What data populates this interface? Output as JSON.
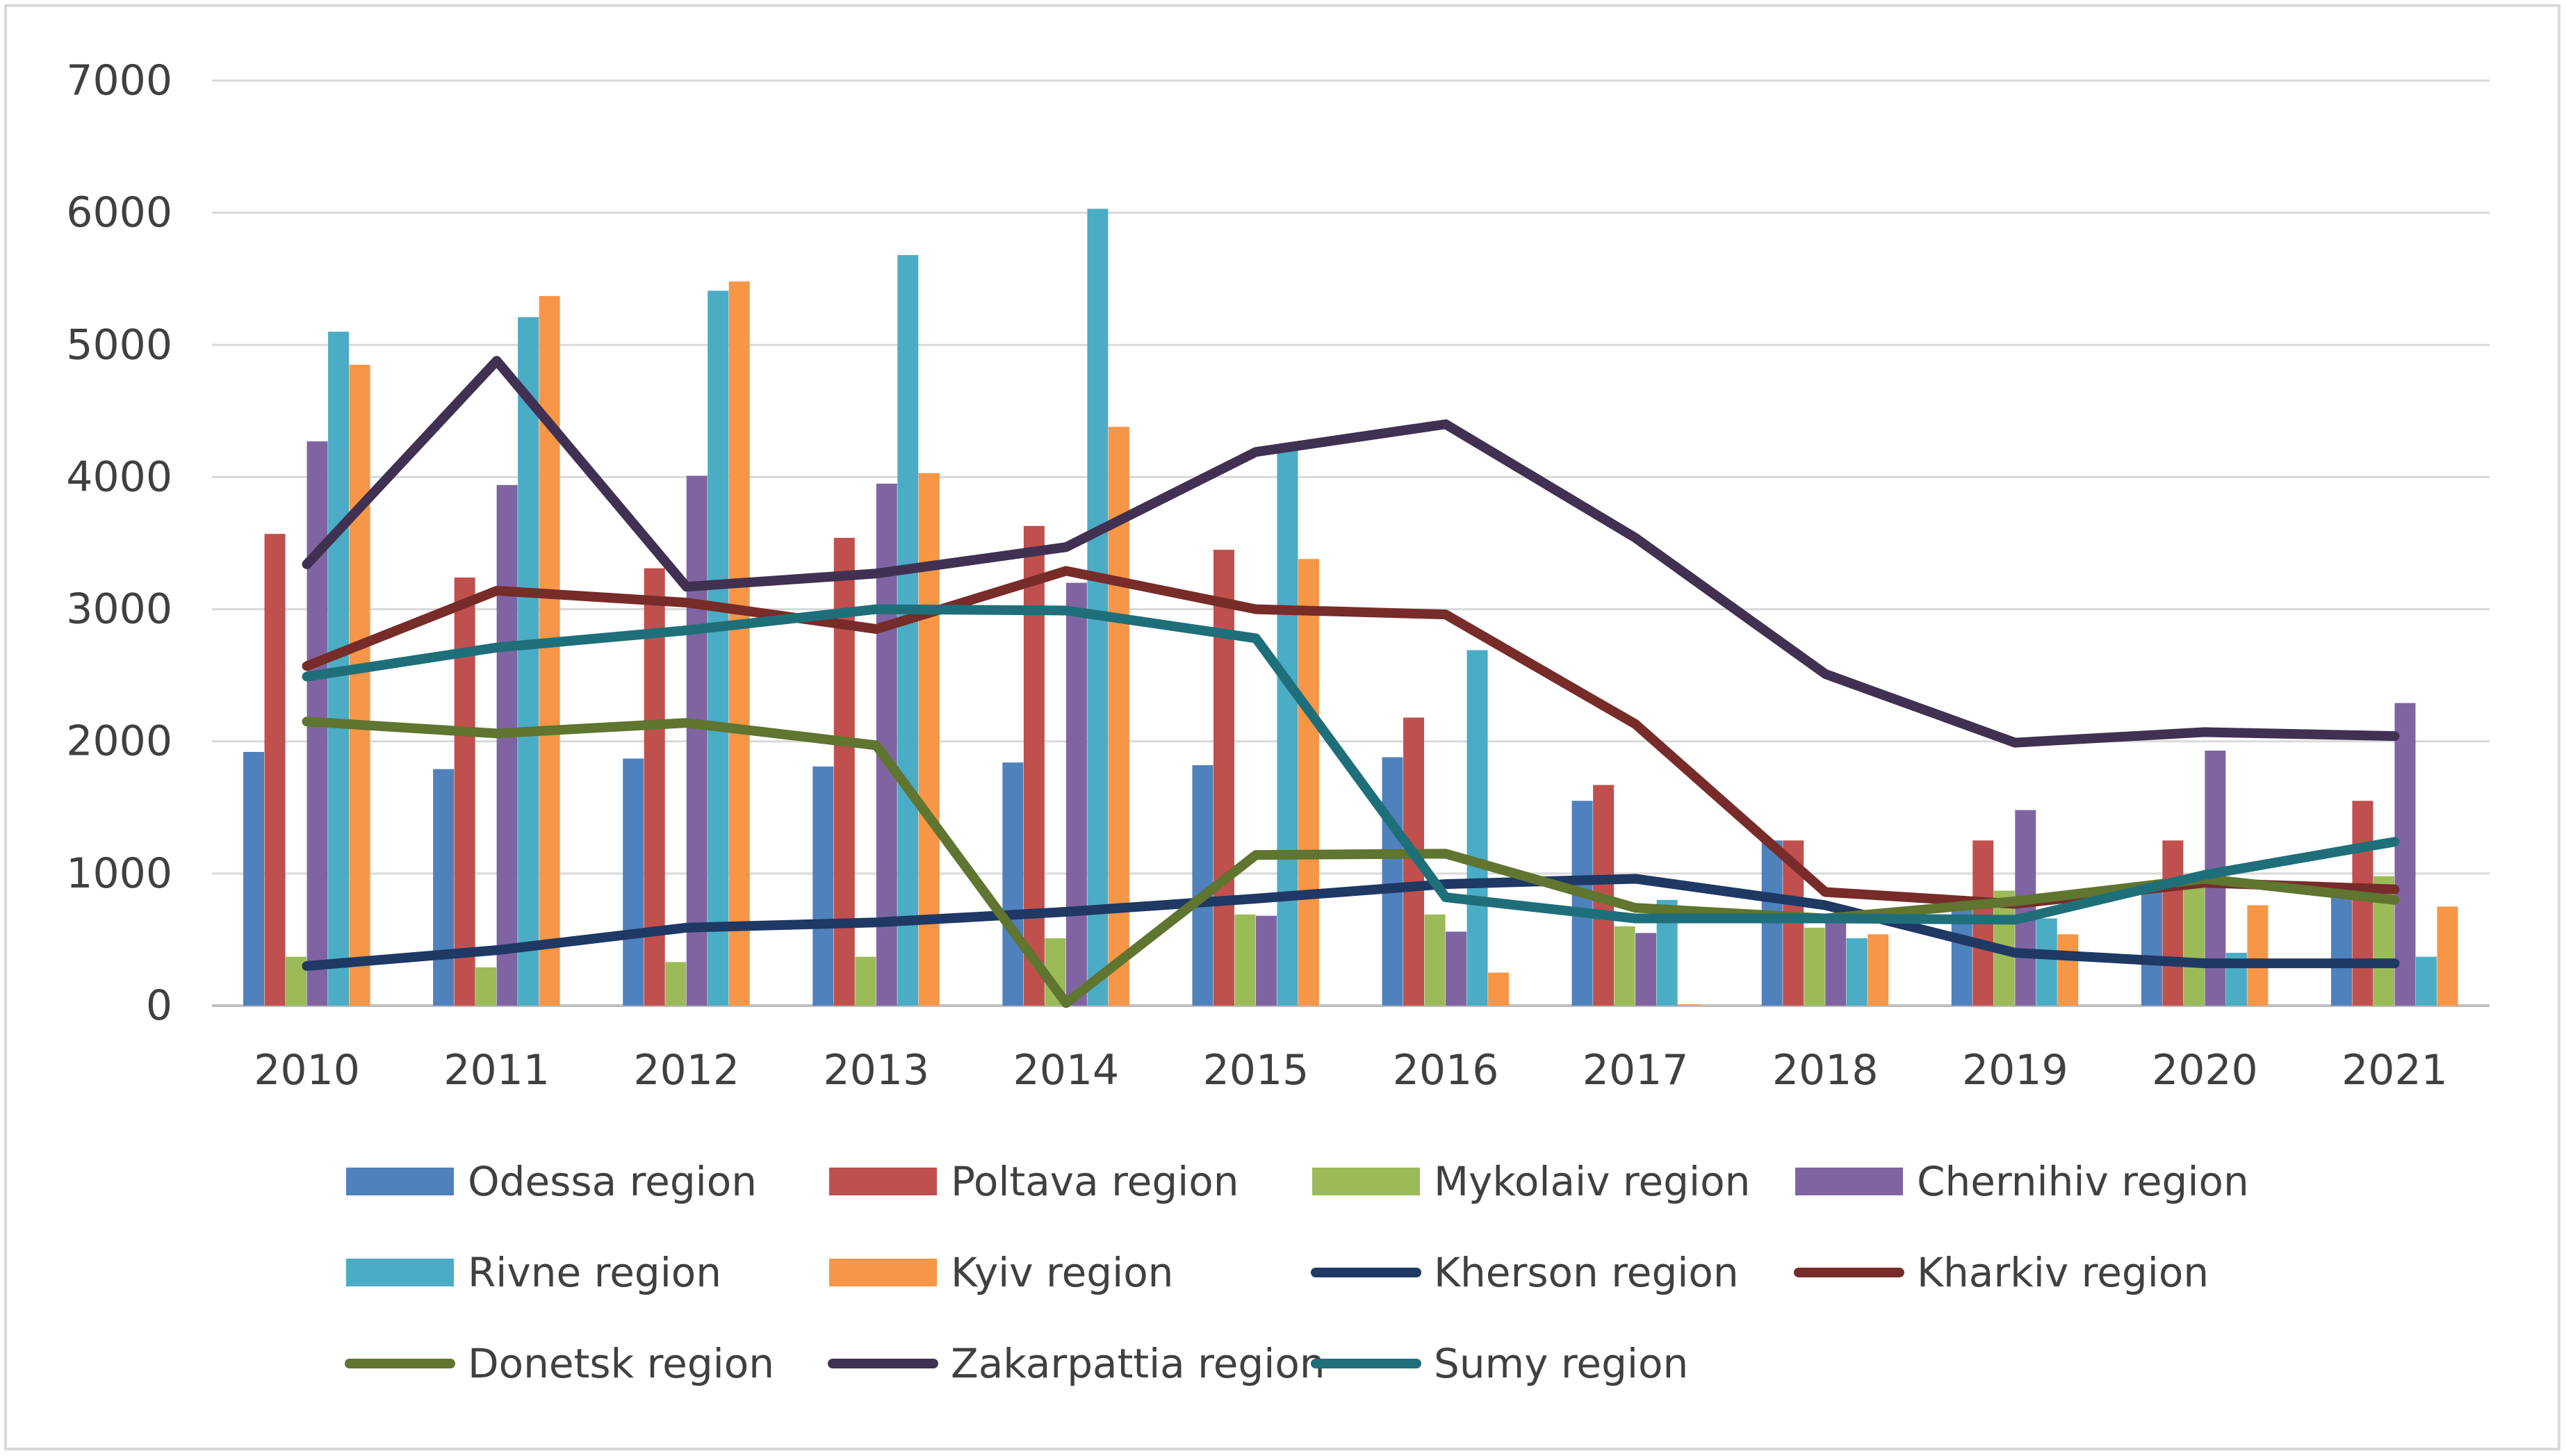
{
  "chart_data": {
    "type": "bar+line",
    "title": "",
    "xlabel": "",
    "ylabel": "",
    "ylim": [
      0,
      7000
    ],
    "yticks": [
      0,
      1000,
      2000,
      3000,
      4000,
      5000,
      6000,
      7000
    ],
    "grid": true,
    "legend_position": "bottom",
    "categories": [
      "2010",
      "2011",
      "2012",
      "2013",
      "2014",
      "2015",
      "2016",
      "2017",
      "2018",
      "2019",
      "2020",
      "2021"
    ],
    "bar_series": [
      {
        "name": "Odessa region",
        "color": "#4f81bd",
        "values": [
          1920,
          1790,
          1870,
          1810,
          1840,
          1820,
          1880,
          1550,
          1250,
          780,
          900,
          900
        ]
      },
      {
        "name": "Poltava region",
        "color": "#c0504d",
        "values": [
          3570,
          3240,
          3310,
          3540,
          3630,
          3450,
          2180,
          1670,
          1250,
          1250,
          1250,
          1550
        ]
      },
      {
        "name": "Mykolaiv region",
        "color": "#9bbb59",
        "values": [
          370,
          290,
          330,
          370,
          510,
          690,
          690,
          600,
          590,
          870,
          930,
          980
        ]
      },
      {
        "name": "Chernihiv region",
        "color": "#8064a2",
        "values": [
          4270,
          3940,
          4010,
          3950,
          3200,
          680,
          560,
          550,
          640,
          1480,
          1930,
          2290
        ]
      },
      {
        "name": "Rivne region",
        "color": "#4bacc6",
        "values": [
          5100,
          5210,
          5410,
          5680,
          6030,
          4200,
          2690,
          800,
          510,
          660,
          400,
          370
        ]
      },
      {
        "name": "Kyiv region",
        "color": "#f79646",
        "values": [
          4850,
          5370,
          5480,
          4030,
          4380,
          3380,
          250,
          10,
          540,
          540,
          760,
          750
        ]
      }
    ],
    "line_series": [
      {
        "name": "Kherson region",
        "color": "#1f3864",
        "values": [
          300,
          420,
          590,
          630,
          710,
          810,
          920,
          960,
          760,
          400,
          320,
          320
        ]
      },
      {
        "name": "Kharkiv region",
        "color": "#772c2a",
        "values": [
          2570,
          3140,
          3050,
          2850,
          3290,
          3000,
          2960,
          2130,
          860,
          770,
          930,
          880
        ]
      },
      {
        "name": "Donetsk region",
        "color": "#5f7530",
        "values": [
          2150,
          2060,
          2140,
          1970,
          20,
          1140,
          1150,
          740,
          660,
          790,
          960,
          800
        ]
      },
      {
        "name": "Zakarpattia region",
        "color": "#403152",
        "values": [
          3340,
          4880,
          3170,
          3270,
          3470,
          4190,
          4400,
          3540,
          2510,
          1990,
          2070,
          2040
        ]
      },
      {
        "name": "Sumy region",
        "color": "#1f6f7a",
        "values": [
          2490,
          2710,
          2840,
          3000,
          2990,
          2780,
          820,
          660,
          660,
          650,
          990,
          1240
        ]
      }
    ],
    "legend_order": [
      "Odessa region",
      "Poltava region",
      "Mykolaiv region",
      "Chernihiv region",
      "Rivne region",
      "Kyiv region",
      "Kherson region",
      "Kharkiv region",
      "Donetsk region",
      "Zakarpattia region",
      "Sumy region"
    ]
  }
}
